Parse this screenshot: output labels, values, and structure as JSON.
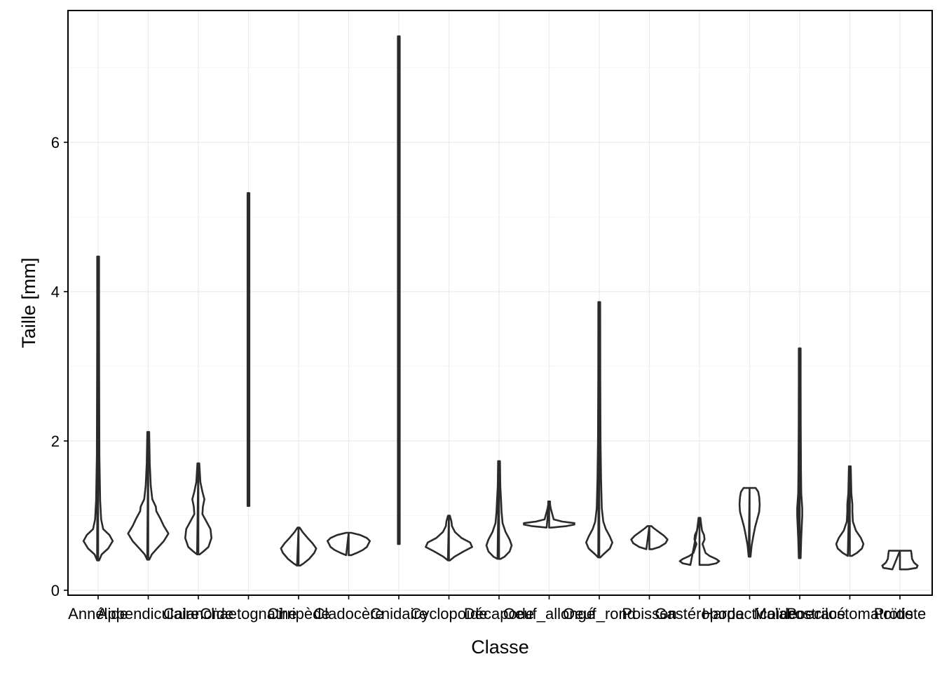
{
  "chart_data": {
    "type": "violin",
    "xlabel": "Classe",
    "ylabel": "Taille  [mm]",
    "ylim": [
      -0.05,
      7.8
    ],
    "yticks": [
      0,
      2,
      4,
      6
    ],
    "grid": true,
    "categories": [
      "Annélide",
      "Appendiculaire",
      "Calanoïde",
      "Chaetognathe",
      "Cirripède",
      "Cladocère",
      "Cnidaire",
      "Cyclopoïde",
      "Décapode",
      "Oeuf_allongé",
      "Oeuf_rond",
      "Poisson",
      "Gastéropode",
      "Harpacticoïde",
      "Malacostracé",
      "Poecilostomatoïde",
      "Protiste"
    ],
    "violins": [
      {
        "min": 0.4,
        "max": 4.47,
        "profile": [
          [
            0.4,
            0.04
          ],
          [
            0.48,
            0.14
          ],
          [
            0.56,
            0.4
          ],
          [
            0.66,
            0.58
          ],
          [
            0.74,
            0.45
          ],
          [
            0.82,
            0.2
          ],
          [
            0.95,
            0.12
          ],
          [
            1.2,
            0.08
          ],
          [
            1.8,
            0.05
          ],
          [
            2.9,
            0.04
          ],
          [
            3.6,
            0.02
          ],
          [
            4.47,
            0.01
          ]
        ]
      },
      {
        "min": 0.41,
        "max": 2.12,
        "profile": [
          [
            0.41,
            0.04
          ],
          [
            0.48,
            0.14
          ],
          [
            0.56,
            0.35
          ],
          [
            0.66,
            0.62
          ],
          [
            0.76,
            0.8
          ],
          [
            0.86,
            0.62
          ],
          [
            0.96,
            0.48
          ],
          [
            1.06,
            0.32
          ],
          [
            1.12,
            0.3
          ],
          [
            1.22,
            0.16
          ],
          [
            1.4,
            0.1
          ],
          [
            1.7,
            0.06
          ],
          [
            2.12,
            0.02
          ]
        ]
      },
      {
        "min": 0.48,
        "max": 1.7,
        "profile": [
          [
            0.48,
            0.05
          ],
          [
            0.52,
            0.2
          ],
          [
            0.58,
            0.4
          ],
          [
            0.7,
            0.52
          ],
          [
            0.82,
            0.48
          ],
          [
            0.92,
            0.32
          ],
          [
            1.02,
            0.16
          ],
          [
            1.12,
            0.18
          ],
          [
            1.22,
            0.24
          ],
          [
            1.32,
            0.16
          ],
          [
            1.45,
            0.08
          ],
          [
            1.7,
            0.02
          ]
        ]
      },
      {
        "min": 1.13,
        "max": 5.32,
        "profile": [
          [
            1.13,
            0.01
          ],
          [
            2.0,
            0.02
          ],
          [
            3.0,
            0.03
          ],
          [
            4.0,
            0.03
          ],
          [
            4.8,
            0.02
          ],
          [
            5.32,
            0.01
          ]
        ]
      },
      {
        "min": 0.33,
        "max": 0.84,
        "profile": [
          [
            0.33,
            0.06
          ],
          [
            0.36,
            0.2
          ],
          [
            0.42,
            0.42
          ],
          [
            0.5,
            0.62
          ],
          [
            0.56,
            0.7
          ],
          [
            0.63,
            0.55
          ],
          [
            0.7,
            0.36
          ],
          [
            0.78,
            0.16
          ],
          [
            0.84,
            0.04
          ]
        ]
      },
      {
        "min": 0.47,
        "max": 0.77,
        "profile": [
          [
            0.47,
            0.1
          ],
          [
            0.5,
            0.32
          ],
          [
            0.54,
            0.56
          ],
          [
            0.58,
            0.72
          ],
          [
            0.62,
            0.78
          ],
          [
            0.66,
            0.84
          ],
          [
            0.7,
            0.72
          ],
          [
            0.74,
            0.46
          ],
          [
            0.77,
            0.1
          ]
        ]
      },
      {
        "min": 0.62,
        "max": 7.42,
        "profile": [
          [
            0.62,
            0.01
          ],
          [
            2.0,
            0.02
          ],
          [
            4.0,
            0.02
          ],
          [
            6.0,
            0.01
          ],
          [
            7.42,
            0.005
          ]
        ]
      },
      {
        "min": 0.4,
        "max": 1.0,
        "profile": [
          [
            0.4,
            0.04
          ],
          [
            0.45,
            0.22
          ],
          [
            0.52,
            0.58
          ],
          [
            0.58,
            0.92
          ],
          [
            0.64,
            0.84
          ],
          [
            0.7,
            0.5
          ],
          [
            0.78,
            0.24
          ],
          [
            0.86,
            0.12
          ],
          [
            0.92,
            0.1
          ],
          [
            1.0,
            0.03
          ]
        ]
      },
      {
        "min": 0.42,
        "max": 1.73,
        "profile": [
          [
            0.42,
            0.06
          ],
          [
            0.45,
            0.22
          ],
          [
            0.52,
            0.42
          ],
          [
            0.6,
            0.5
          ],
          [
            0.68,
            0.42
          ],
          [
            0.78,
            0.26
          ],
          [
            0.9,
            0.14
          ],
          [
            1.05,
            0.1
          ],
          [
            1.2,
            0.08
          ],
          [
            1.4,
            0.05
          ],
          [
            1.73,
            0.02
          ]
        ]
      },
      {
        "min": 0.84,
        "max": 1.19,
        "profile": [
          [
            0.84,
            0.1
          ],
          [
            0.86,
            0.7
          ],
          [
            0.88,
            1.0
          ],
          [
            0.9,
            1.0
          ],
          [
            0.92,
            0.52
          ],
          [
            0.95,
            0.18
          ],
          [
            1.0,
            0.14
          ],
          [
            1.05,
            0.1
          ],
          [
            1.1,
            0.06
          ],
          [
            1.15,
            0.03
          ],
          [
            1.19,
            0.02
          ]
        ]
      },
      {
        "min": 0.44,
        "max": 3.86,
        "profile": [
          [
            0.44,
            0.04
          ],
          [
            0.48,
            0.16
          ],
          [
            0.56,
            0.42
          ],
          [
            0.64,
            0.52
          ],
          [
            0.72,
            0.42
          ],
          [
            0.82,
            0.26
          ],
          [
            0.92,
            0.16
          ],
          [
            1.1,
            0.1
          ],
          [
            1.5,
            0.07
          ],
          [
            2.0,
            0.05
          ],
          [
            2.8,
            0.04
          ],
          [
            3.86,
            0.01
          ]
        ]
      },
      {
        "min": 0.55,
        "max": 0.86,
        "profile": [
          [
            0.55,
            0.12
          ],
          [
            0.58,
            0.4
          ],
          [
            0.63,
            0.64
          ],
          [
            0.68,
            0.72
          ],
          [
            0.73,
            0.58
          ],
          [
            0.78,
            0.38
          ],
          [
            0.83,
            0.18
          ],
          [
            0.86,
            0.08
          ]
        ]
      },
      {
        "min": 0.34,
        "max": 0.97,
        "profile": [
          [
            0.34,
            0.36
          ],
          [
            0.36,
            0.66
          ],
          [
            0.39,
            0.78
          ],
          [
            0.42,
            0.66
          ],
          [
            0.46,
            0.4
          ],
          [
            0.5,
            0.24
          ],
          [
            0.56,
            0.18
          ],
          [
            0.62,
            0.12
          ],
          [
            0.68,
            0.2
          ],
          [
            0.74,
            0.18
          ],
          [
            0.8,
            0.1
          ],
          [
            0.9,
            0.06
          ],
          [
            0.97,
            0.02
          ]
        ]
      },
      {
        "min": 0.45,
        "max": 1.37,
        "profile": [
          [
            0.45,
            0.02
          ],
          [
            0.6,
            0.08
          ],
          [
            0.75,
            0.16
          ],
          [
            0.85,
            0.22
          ],
          [
            0.95,
            0.3
          ],
          [
            1.05,
            0.38
          ],
          [
            1.15,
            0.4
          ],
          [
            1.25,
            0.38
          ],
          [
            1.32,
            0.34
          ],
          [
            1.37,
            0.24
          ]
        ]
      },
      {
        "min": 0.43,
        "max": 3.24,
        "profile": [
          [
            0.43,
            0.01
          ],
          [
            0.7,
            0.06
          ],
          [
            1.0,
            0.1
          ],
          [
            1.1,
            0.1
          ],
          [
            1.3,
            0.06
          ],
          [
            1.6,
            0.05
          ],
          [
            2.2,
            0.04
          ],
          [
            2.8,
            0.03
          ],
          [
            3.24,
            0.01
          ]
        ]
      },
      {
        "min": 0.46,
        "max": 1.66,
        "profile": [
          [
            0.46,
            0.08
          ],
          [
            0.5,
            0.28
          ],
          [
            0.56,
            0.48
          ],
          [
            0.62,
            0.54
          ],
          [
            0.7,
            0.44
          ],
          [
            0.8,
            0.24
          ],
          [
            0.92,
            0.12
          ],
          [
            1.05,
            0.1
          ],
          [
            1.15,
            0.1
          ],
          [
            1.3,
            0.06
          ],
          [
            1.66,
            0.02
          ]
        ]
      },
      {
        "min": 0.28,
        "max": 0.53,
        "profile": [
          [
            0.28,
            0.3
          ],
          [
            0.3,
            0.66
          ],
          [
            0.33,
            0.7
          ],
          [
            0.37,
            0.56
          ],
          [
            0.42,
            0.48
          ],
          [
            0.48,
            0.46
          ],
          [
            0.53,
            0.44
          ]
        ]
      }
    ]
  }
}
